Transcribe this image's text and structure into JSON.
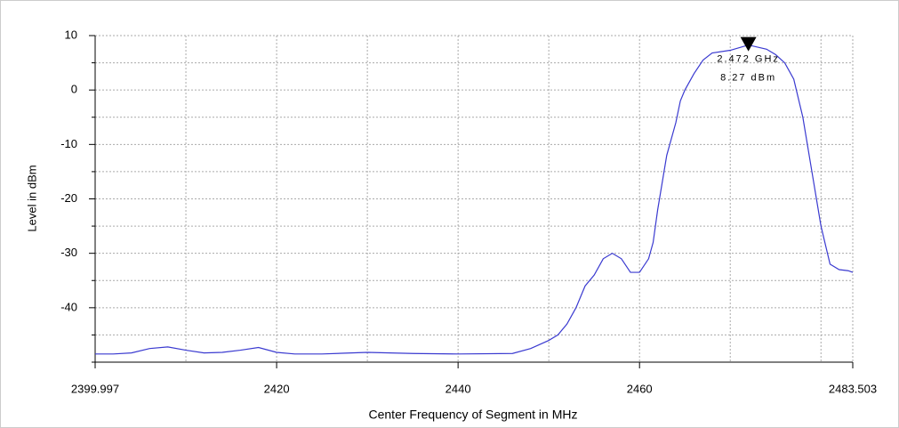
{
  "chart_data": {
    "type": "line",
    "xlabel": "Center Frequency of Segment in MHz",
    "ylabel": "Level in dBm",
    "xlim": [
      2399.997,
      2483.503
    ],
    "ylim": [
      -50,
      10
    ],
    "xticks": [
      2399.997,
      2420,
      2440,
      2460,
      2483.503
    ],
    "yticks": [
      10,
      0,
      -10,
      -20,
      -30,
      -40
    ],
    "xgrid": [
      2410,
      2430,
      2450,
      2470,
      2480
    ],
    "ygrid": [
      5,
      -5,
      -15,
      -25,
      -35,
      -45,
      -50
    ],
    "grid": true,
    "series": [
      {
        "color": "#3a3ad0",
        "x": [
          2399.997,
          2402,
          2404,
          2406,
          2408,
          2410,
          2412,
          2414,
          2416,
          2418,
          2420,
          2422,
          2425,
          2430,
          2435,
          2440,
          2446,
          2448,
          2450,
          2451,
          2452,
          2453,
          2454,
          2455,
          2456,
          2457,
          2458,
          2459,
          2460,
          2461,
          2461.5,
          2462,
          2463,
          2464,
          2464.5,
          2465,
          2466,
          2467,
          2468,
          2470,
          2472,
          2474,
          2475,
          2476,
          2477,
          2478,
          2479,
          2480,
          2481,
          2482,
          2483,
          2483.503
        ],
        "values": [
          -48.5,
          -48.5,
          -48.3,
          -47.5,
          -47.2,
          -47.8,
          -48.3,
          -48.2,
          -47.8,
          -47.3,
          -48.2,
          -48.5,
          -48.5,
          -48.2,
          -48.4,
          -48.5,
          -48.4,
          -47.5,
          -46,
          -45,
          -43,
          -40,
          -36,
          -34,
          -31,
          -30,
          -31,
          -33.5,
          -33.5,
          -31,
          -28,
          -22,
          -12,
          -6,
          -2,
          0,
          3,
          5.5,
          6.8,
          7.3,
          8.27,
          7.5,
          6.5,
          5,
          2,
          -5,
          -15,
          -25,
          -32,
          -33,
          -33.2,
          -33.5
        ]
      }
    ],
    "marker": {
      "x": 2472,
      "y": 8.27,
      "labels": [
        "2.472 GHz",
        "8.27 dBm"
      ]
    }
  }
}
